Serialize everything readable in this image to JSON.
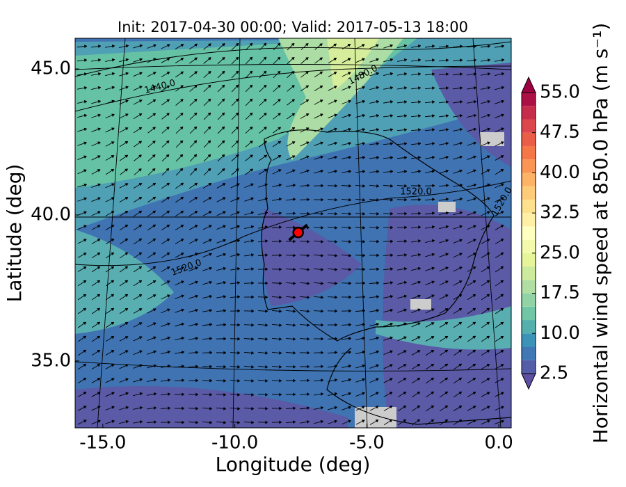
{
  "chart_data": {
    "type": "map",
    "title": "Init: 2017-04-30 00:00; Valid: 2017-05-13 18:00",
    "x_label": "Longitude (deg)",
    "y_label": "Latitude (deg)",
    "xlim": [
      -16.05,
      0.47
    ],
    "ylim": [
      32.71,
      46.05
    ],
    "xticks": [
      {
        "value": -15,
        "label": "-15.0"
      },
      {
        "value": -10,
        "label": "-10.0"
      },
      {
        "value": -5,
        "label": "-5.0"
      },
      {
        "value": 0,
        "label": "0.0"
      }
    ],
    "yticks": [
      {
        "value": 35,
        "label": "35.0"
      },
      {
        "value": 40,
        "label": "40.0"
      },
      {
        "value": 45,
        "label": "45.0"
      }
    ],
    "colorbar": {
      "label": "Horizontal wind speed at 850.0 hPa (m s⁻¹)",
      "lim": [
        2.5,
        55
      ],
      "step": 2.5,
      "ticks": [
        {
          "value": 2.5,
          "label": "2.5"
        },
        {
          "value": 10,
          "label": "10.0"
        },
        {
          "value": 17.5,
          "label": "17.5"
        },
        {
          "value": 25,
          "label": "25.0"
        },
        {
          "value": 32.5,
          "label": "32.5"
        },
        {
          "value": 40,
          "label": "40.0"
        },
        {
          "value": 47.5,
          "label": "47.5"
        },
        {
          "value": 55,
          "label": "55.0"
        }
      ],
      "cmap": [
        "#5e4fa2",
        "#3288bd",
        "#66c2a5",
        "#abdda4",
        "#e6f598",
        "#ffffbf",
        "#fee08b",
        "#fdae61",
        "#f46d43",
        "#d53e4f",
        "#9e0142"
      ]
    },
    "contour_labels": [
      "1440.0",
      "1480.0",
      "1520.0",
      "1520.0",
      "1520.0"
    ],
    "marker": {
      "lon": -7.6,
      "lat": 39.4
    }
  }
}
